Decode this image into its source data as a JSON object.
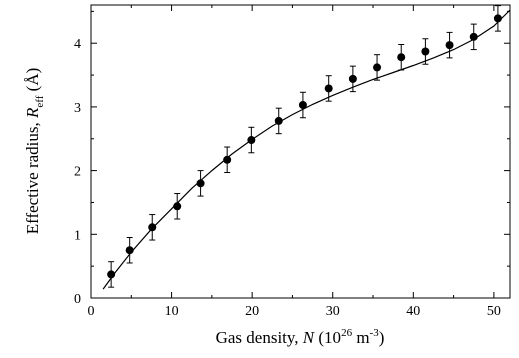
{
  "chart_data": {
    "type": "scatter",
    "title": "",
    "xlabel": {
      "prefix": "Gas density, ",
      "var": "N",
      "open": " (10",
      "sup": "26",
      "mid": " m",
      "sup2": "-3",
      "close": ")"
    },
    "ylabel": {
      "prefix": "Effective radius, ",
      "var": "R",
      "sub": "eff",
      "suffix": " (Å)"
    },
    "xlim": [
      0,
      52
    ],
    "ylim": [
      0,
      4.6
    ],
    "xticks": [
      0,
      10,
      20,
      30,
      40,
      50
    ],
    "yticks": [
      0,
      1,
      2,
      3,
      4
    ],
    "grid": false,
    "series": [
      {
        "kind": "points_with_error_bars",
        "x": [
          2.5,
          4.8,
          7.6,
          10.7,
          13.6,
          16.9,
          19.9,
          23.3,
          26.3,
          29.5,
          32.5,
          35.5,
          38.5,
          41.5,
          44.5,
          47.5,
          50.5
        ],
        "y": [
          0.37,
          0.75,
          1.11,
          1.44,
          1.8,
          2.17,
          2.48,
          2.78,
          3.03,
          3.29,
          3.44,
          3.62,
          3.78,
          3.87,
          3.97,
          4.1,
          4.39
        ],
        "err": [
          0.2,
          0.2,
          0.2,
          0.2,
          0.2,
          0.2,
          0.2,
          0.2,
          0.2,
          0.2,
          0.2,
          0.2,
          0.2,
          0.2,
          0.2,
          0.2,
          0.2
        ]
      },
      {
        "kind": "fit_curve",
        "x": [
          1.5,
          3,
          5,
          7.5,
          10,
          12.5,
          15,
          17.5,
          20,
          22.5,
          25,
          27.5,
          30,
          32.5,
          35,
          37.5,
          40,
          42.5,
          45,
          47.5,
          50,
          52
        ],
        "y": [
          0.14,
          0.4,
          0.72,
          1.08,
          1.4,
          1.72,
          2.0,
          2.26,
          2.49,
          2.7,
          2.88,
          3.04,
          3.18,
          3.31,
          3.43,
          3.54,
          3.65,
          3.77,
          3.9,
          4.06,
          4.27,
          4.52
        ]
      }
    ]
  }
}
